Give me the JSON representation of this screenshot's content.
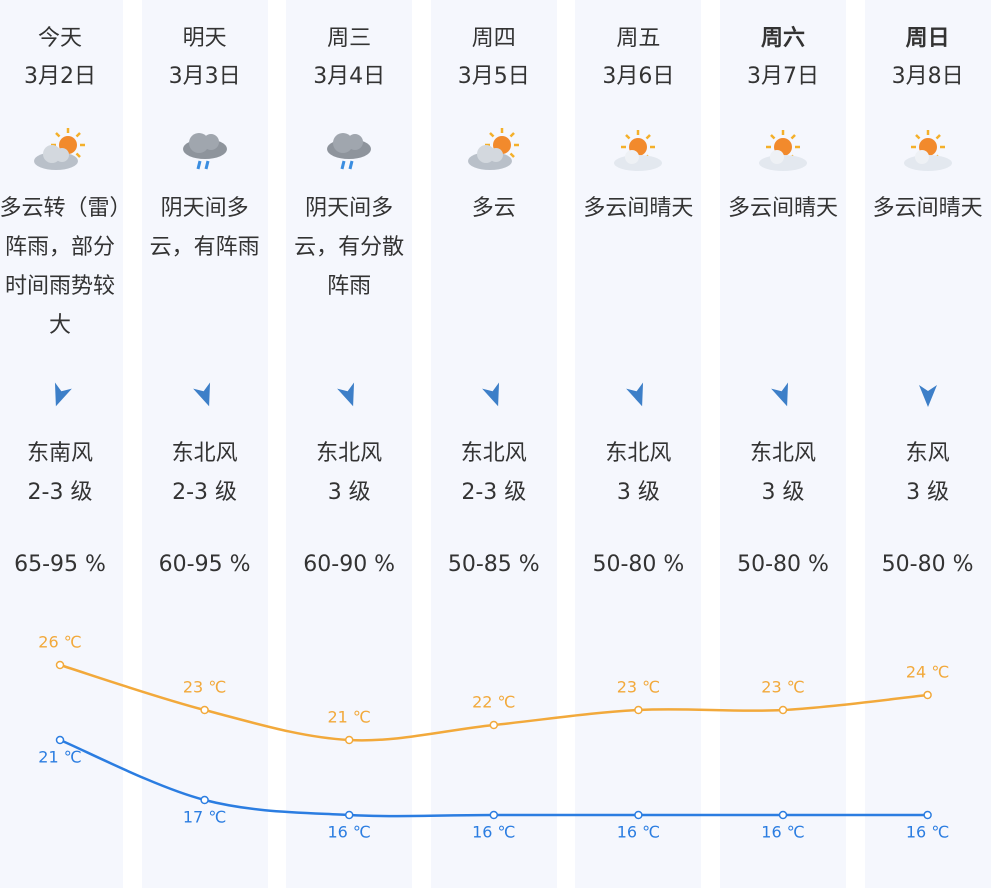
{
  "days": [
    {
      "name": "今天",
      "date": "3月2日",
      "desc": "多云转（雷）阵雨，部分时间雨势较大",
      "wind": "东南风",
      "level": "2-3 级",
      "humidity": "65-95 %"
    },
    {
      "name": "明天",
      "date": "3月3日",
      "desc": "阴天间多云，有阵雨",
      "wind": "东北风",
      "level": "2-3 级",
      "humidity": "60-95 %"
    },
    {
      "name": "周三",
      "date": "3月4日",
      "desc": "阴天间多云，有分散阵雨",
      "wind": "东北风",
      "level": "3 级",
      "humidity": "60-90 %"
    },
    {
      "name": "周四",
      "date": "3月5日",
      "desc": "多云",
      "wind": "东北风",
      "level": "2-3 级",
      "humidity": "50-85 %"
    },
    {
      "name": "周五",
      "date": "3月6日",
      "desc": "多云间晴天",
      "wind": "东北风",
      "level": "3 级",
      "humidity": "50-80 %"
    },
    {
      "name": "周六",
      "date": "3月7日",
      "desc": "多云间晴天",
      "wind": "东北风",
      "level": "3 级",
      "humidity": "50-80 %"
    },
    {
      "name": "周日",
      "date": "3月8日",
      "desc": "多云间晴天",
      "wind": "东风",
      "level": "3 级",
      "humidity": "50-80 %"
    }
  ],
  "chart_data": {
    "type": "line",
    "series": [
      {
        "color": "#f2a93b",
        "values": [
          26,
          23,
          21,
          22,
          23,
          23,
          24
        ],
        "value_labels": [
          "26 ℃",
          "23 ℃",
          "21 ℃",
          "22 ℃",
          "23 ℃",
          "23 ℃",
          "24 ℃"
        ]
      },
      {
        "color": "#2b7de1",
        "values": [
          21,
          17,
          16,
          16,
          16,
          16,
          16
        ],
        "value_labels": [
          "21 ℃",
          "17 ℃",
          "16 ℃",
          "16 ℃",
          "16 ℃",
          "16 ℃",
          "16 ℃"
        ]
      }
    ]
  }
}
